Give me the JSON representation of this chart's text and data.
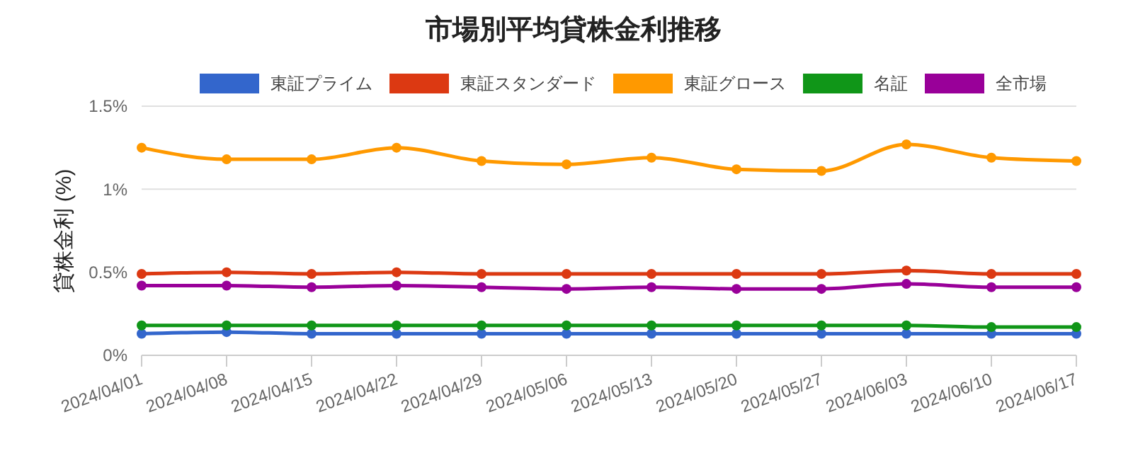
{
  "chart_data": {
    "type": "line",
    "title": "市場別平均貸株金利推移",
    "ylabel": "貸株金利 (%)",
    "categories": [
      "2024/04/01",
      "2024/04/08",
      "2024/04/15",
      "2024/04/22",
      "2024/04/29",
      "2024/05/06",
      "2024/05/13",
      "2024/05/20",
      "2024/05/27",
      "2024/06/03",
      "2024/06/10",
      "2024/06/17"
    ],
    "series": [
      {
        "name": "東証プライム",
        "color": "#3366cc",
        "values": [
          0.13,
          0.14,
          0.13,
          0.13,
          0.13,
          0.13,
          0.13,
          0.13,
          0.13,
          0.13,
          0.13,
          0.13
        ]
      },
      {
        "name": "東証スタンダード",
        "color": "#dc3912",
        "values": [
          0.49,
          0.5,
          0.49,
          0.5,
          0.49,
          0.49,
          0.49,
          0.49,
          0.49,
          0.51,
          0.49,
          0.49
        ]
      },
      {
        "name": "東証グロース",
        "color": "#ff9900",
        "values": [
          1.25,
          1.18,
          1.18,
          1.25,
          1.17,
          1.15,
          1.19,
          1.12,
          1.11,
          1.27,
          1.19,
          1.17
        ]
      },
      {
        "name": "名証",
        "color": "#109618",
        "values": [
          0.18,
          0.18,
          0.18,
          0.18,
          0.18,
          0.18,
          0.18,
          0.18,
          0.18,
          0.18,
          0.17,
          0.17
        ]
      },
      {
        "name": "全市場",
        "color": "#990099",
        "values": [
          0.42,
          0.42,
          0.41,
          0.42,
          0.41,
          0.4,
          0.41,
          0.4,
          0.4,
          0.43,
          0.41,
          0.41
        ]
      }
    ],
    "ylim": [
      0,
      1.5
    ],
    "yticks": [
      {
        "value": 0,
        "label": "0%"
      },
      {
        "value": 0.5,
        "label": "0.5%"
      },
      {
        "value": 1,
        "label": "1%"
      },
      {
        "value": 1.5,
        "label": "1.5%"
      }
    ],
    "grid": "y",
    "legend": "top",
    "marker": "circle",
    "line_style": "solid"
  }
}
